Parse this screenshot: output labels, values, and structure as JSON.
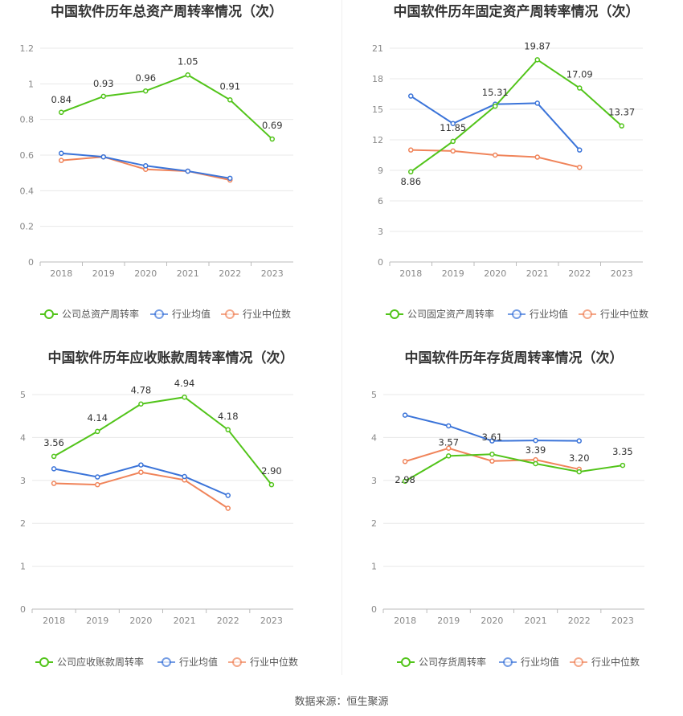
{
  "source_label": "数据来源：恒生聚源",
  "legend": {
    "industry_avg": "行业均值",
    "industry_median": "行业中位数"
  },
  "colors": {
    "company": "#52c41a",
    "industry_avg": "#3b74d9",
    "industry_median": "#f0845a"
  },
  "chart_data": [
    {
      "type": "line",
      "title": "中国软件历年总资产周转率情况（次）",
      "x": [
        "2018",
        "2019",
        "2020",
        "2021",
        "2022",
        "2023"
      ],
      "ylim": [
        0,
        1.2
      ],
      "yticks": [
        "0",
        "0.2",
        "0.4",
        "0.6",
        "0.8",
        "1",
        "1.2"
      ],
      "series": [
        {
          "name": "公司总资产周转率",
          "values": [
            0.84,
            0.93,
            0.96,
            1.05,
            0.91,
            0.69
          ],
          "labels": [
            "0.84",
            "0.93",
            "0.96",
            "1.05",
            "0.91",
            "0.69"
          ]
        },
        {
          "name": "行业均值",
          "values": [
            0.61,
            0.59,
            0.54,
            0.51,
            0.47,
            null
          ]
        },
        {
          "name": "行业中位数",
          "values": [
            0.57,
            0.59,
            0.52,
            0.51,
            0.46,
            null
          ]
        }
      ]
    },
    {
      "type": "line",
      "title": "中国软件历年固定资产周转率情况（次）",
      "x": [
        "2018",
        "2019",
        "2020",
        "2021",
        "2022",
        "2023"
      ],
      "ylim": [
        0,
        21
      ],
      "yticks": [
        "0",
        "3",
        "6",
        "9",
        "12",
        "15",
        "18",
        "21"
      ],
      "series": [
        {
          "name": "公司固定资产周转率",
          "values": [
            8.86,
            11.85,
            15.31,
            19.87,
            17.09,
            13.37
          ],
          "labels": [
            "8.86",
            "11.85",
            "15.31",
            "19.87",
            "17.09",
            "13.37"
          ]
        },
        {
          "name": "行业均值",
          "values": [
            16.3,
            13.6,
            15.5,
            15.6,
            11.0,
            null
          ]
        },
        {
          "name": "行业中位数",
          "values": [
            11.0,
            10.9,
            10.5,
            10.3,
            9.3,
            null
          ]
        }
      ]
    },
    {
      "type": "line",
      "title": "中国软件历年应收账款周转率情况（次）",
      "x": [
        "2018",
        "2019",
        "2020",
        "2021",
        "2022",
        "2023"
      ],
      "ylim": [
        0,
        5
      ],
      "yticks": [
        "0",
        "1",
        "2",
        "3",
        "4",
        "5"
      ],
      "series": [
        {
          "name": "公司应收账款周转率",
          "values": [
            3.56,
            4.14,
            4.78,
            4.94,
            4.18,
            2.9
          ],
          "labels": [
            "3.56",
            "4.14",
            "4.78",
            "4.94",
            "4.18",
            "2.90"
          ]
        },
        {
          "name": "行业均值",
          "values": [
            3.27,
            3.08,
            3.36,
            3.09,
            2.65,
            null
          ]
        },
        {
          "name": "行业中位数",
          "values": [
            2.93,
            2.9,
            3.19,
            3.01,
            2.35,
            null
          ]
        }
      ]
    },
    {
      "type": "line",
      "title": "中国软件历年存货周转率情况（次）",
      "x": [
        "2018",
        "2019",
        "2020",
        "2021",
        "2022",
        "2023"
      ],
      "ylim": [
        0,
        5
      ],
      "yticks": [
        "0",
        "1",
        "2",
        "3",
        "4",
        "5"
      ],
      "series": [
        {
          "name": "公司存货周转率",
          "values": [
            2.98,
            3.57,
            3.61,
            3.39,
            3.2,
            3.35
          ],
          "labels": [
            "2.98",
            "3.57",
            "3.61",
            "3.39",
            "3.20",
            "3.35"
          ]
        },
        {
          "name": "行业均值",
          "values": [
            4.52,
            4.27,
            3.92,
            3.93,
            3.92,
            null
          ]
        },
        {
          "name": "行业中位数",
          "values": [
            3.44,
            3.75,
            3.45,
            3.48,
            3.26,
            null
          ]
        }
      ]
    }
  ]
}
